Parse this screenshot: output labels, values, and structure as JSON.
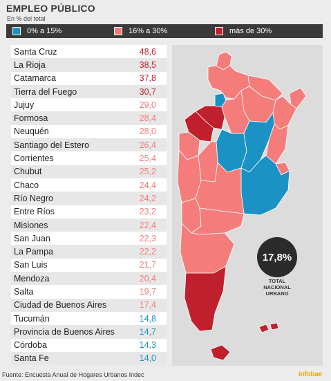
{
  "title": "EMPLEO PÚBLICO",
  "subtitle": "En % del total",
  "colors": {
    "low": "#1b92c4",
    "mid": "#f47d7c",
    "high": "#c0202d",
    "dark": "#3a3a3a"
  },
  "legend": [
    {
      "label": "0% a 15%",
      "color": "#1b92c4"
    },
    {
      "label": "16% a 30%",
      "color": "#f47d7c"
    },
    {
      "label": "más de 30%",
      "color": "#c0202d"
    }
  ],
  "chart_data": {
    "type": "table",
    "title": "EMPLEO PÚBLICO",
    "subtitle": "En % del total",
    "rows": [
      {
        "name": "Santa Cruz",
        "value": "48,6",
        "band": "high"
      },
      {
        "name": "La Rioja",
        "value": "38,5",
        "band": "high"
      },
      {
        "name": "Catamarca",
        "value": "37,8",
        "band": "high"
      },
      {
        "name": "Tierra del Fuego",
        "value": "30,7",
        "band": "high"
      },
      {
        "name": "Jujuy",
        "value": "29,0",
        "band": "mid"
      },
      {
        "name": "Formosa",
        "value": "28,4",
        "band": "mid"
      },
      {
        "name": "Neuquén",
        "value": "28,0",
        "band": "mid"
      },
      {
        "name": "Santiago del Estero",
        "value": "26,4",
        "band": "mid"
      },
      {
        "name": "Corrientes",
        "value": "25,4",
        "band": "mid"
      },
      {
        "name": "Chubut",
        "value": "25,2",
        "band": "mid"
      },
      {
        "name": "Chaco",
        "value": "24,4",
        "band": "mid"
      },
      {
        "name": "Río Negro",
        "value": "24,2",
        "band": "mid"
      },
      {
        "name": "Entre Ríos",
        "value": "23,2",
        "band": "mid"
      },
      {
        "name": "Misiones",
        "value": "22,4",
        "band": "mid"
      },
      {
        "name": "San Juan",
        "value": "22,3",
        "band": "mid"
      },
      {
        "name": "La Pampa",
        "value": "22,2",
        "band": "mid"
      },
      {
        "name": "San Luis",
        "value": "21,7",
        "band": "mid"
      },
      {
        "name": "Mendoza",
        "value": "20,4",
        "band": "mid"
      },
      {
        "name": "Salta",
        "value": "19,7",
        "band": "mid"
      },
      {
        "name": "Ciudad de Buenos Aires",
        "value": "17,4",
        "band": "mid"
      },
      {
        "name": "Tucumán",
        "value": "14,8",
        "band": "low"
      },
      {
        "name": "Provincia de Buenos Aires",
        "value": "14,7",
        "band": "low"
      },
      {
        "name": "Córdoba",
        "value": "14,3",
        "band": "low"
      },
      {
        "name": "Santa Fe",
        "value": "14,0",
        "band": "low"
      }
    ]
  },
  "total": {
    "value": "17,8%",
    "label_line1": "TOTAL",
    "label_line2": "NACIONAL",
    "label_line3": "URBANO"
  },
  "source": "Fuente: Encuesta Anual de Hogares Urbanos Indec",
  "brand": "infobae"
}
